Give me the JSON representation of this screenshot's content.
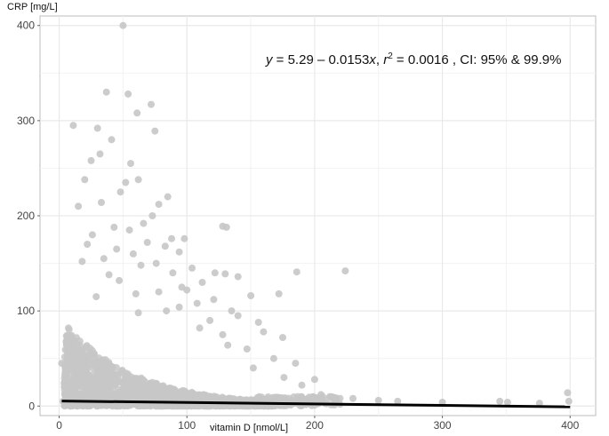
{
  "chart_data": {
    "type": "scatter",
    "title": "",
    "xlabel": "vitamin D [nmol/L]",
    "ylabel": "CRP [mg/L]",
    "xlim": [
      -15,
      420
    ],
    "ylim": [
      -10,
      410
    ],
    "x_ticks": [
      "0",
      "100",
      "200",
      "300",
      "400"
    ],
    "y_ticks": [
      "0",
      "100",
      "200",
      "300",
      "400"
    ],
    "grid": true,
    "annotation": {
      "y_var": "y",
      "equals": " = 5.29 – 0.0153",
      "x_var": "x",
      "sep": ",  ",
      "r_var": "r",
      "r_exp": "2",
      "rest": " = 0.0016 , CI: 95% & 99.9%"
    },
    "regression": {
      "intercept": 5.29,
      "slope": -0.0153,
      "x_range": [
        2,
        400
      ]
    },
    "series": [
      {
        "points": [
          [
            50,
            400
          ],
          [
            37,
            330
          ],
          [
            54,
            328
          ],
          [
            72,
            317
          ],
          [
            11,
            295
          ],
          [
            30,
            292
          ],
          [
            75,
            289
          ],
          [
            61,
            308
          ],
          [
            41,
            280
          ],
          [
            32,
            265
          ],
          [
            56,
            255
          ],
          [
            25,
            258
          ],
          [
            52,
            235
          ],
          [
            85,
            220
          ],
          [
            62,
            238
          ],
          [
            20,
            238
          ],
          [
            48,
            225
          ],
          [
            33,
            214
          ],
          [
            78,
            212
          ],
          [
            15,
            210
          ],
          [
            73,
            200
          ],
          [
            66,
            192
          ],
          [
            43,
            188
          ],
          [
            26,
            180
          ],
          [
            88,
            176
          ],
          [
            98,
            176
          ],
          [
            128,
            189
          ],
          [
            131,
            188
          ],
          [
            55,
            185
          ],
          [
            69,
            172
          ],
          [
            22,
            170
          ],
          [
            83,
            168
          ],
          [
            45,
            165
          ],
          [
            94,
            162
          ],
          [
            58,
            160
          ],
          [
            35,
            155
          ],
          [
            18,
            152
          ],
          [
            76,
            150
          ],
          [
            64,
            148
          ],
          [
            104,
            145
          ],
          [
            122,
            140
          ],
          [
            130,
            139
          ],
          [
            140,
            136
          ],
          [
            224,
            142
          ],
          [
            186,
            141
          ],
          [
            89,
            140
          ],
          [
            39,
            138
          ],
          [
            47,
            132
          ],
          [
            112,
            130
          ],
          [
            96,
            125
          ],
          [
            100,
            122
          ],
          [
            78,
            120
          ],
          [
            60,
            118
          ],
          [
            150,
            116
          ],
          [
            172,
            118
          ],
          [
            29,
            115
          ],
          [
            121,
            112
          ],
          [
            108,
            108
          ],
          [
            94,
            104
          ],
          [
            84,
            100
          ],
          [
            135,
            100
          ],
          [
            62,
            98
          ],
          [
            140,
            95
          ],
          [
            156,
            88
          ],
          [
            118,
            90
          ],
          [
            160,
            78
          ],
          [
            175,
            72
          ],
          [
            128,
            75
          ],
          [
            110,
            82
          ],
          [
            132,
            64
          ],
          [
            147,
            60
          ],
          [
            168,
            50
          ],
          [
            185,
            45
          ],
          [
            152,
            40
          ],
          [
            176,
            30
          ],
          [
            200,
            28
          ],
          [
            190,
            22
          ],
          [
            205,
            12
          ],
          [
            212,
            10
          ],
          [
            230,
            8
          ],
          [
            250,
            6
          ],
          [
            265,
            5
          ],
          [
            300,
            4
          ],
          [
            345,
            5
          ],
          [
            351,
            4
          ],
          [
            376,
            3
          ],
          [
            398,
            14
          ],
          [
            399,
            5
          ],
          [
            2,
            45
          ],
          [
            4,
            20
          ],
          [
            6,
            12
          ],
          [
            3,
            5
          ]
        ]
      }
    ],
    "colors": {
      "points": "#c7c7c7",
      "line": "#000000",
      "grid": "#e9e9e9",
      "axis": "#bdbdbd"
    }
  }
}
